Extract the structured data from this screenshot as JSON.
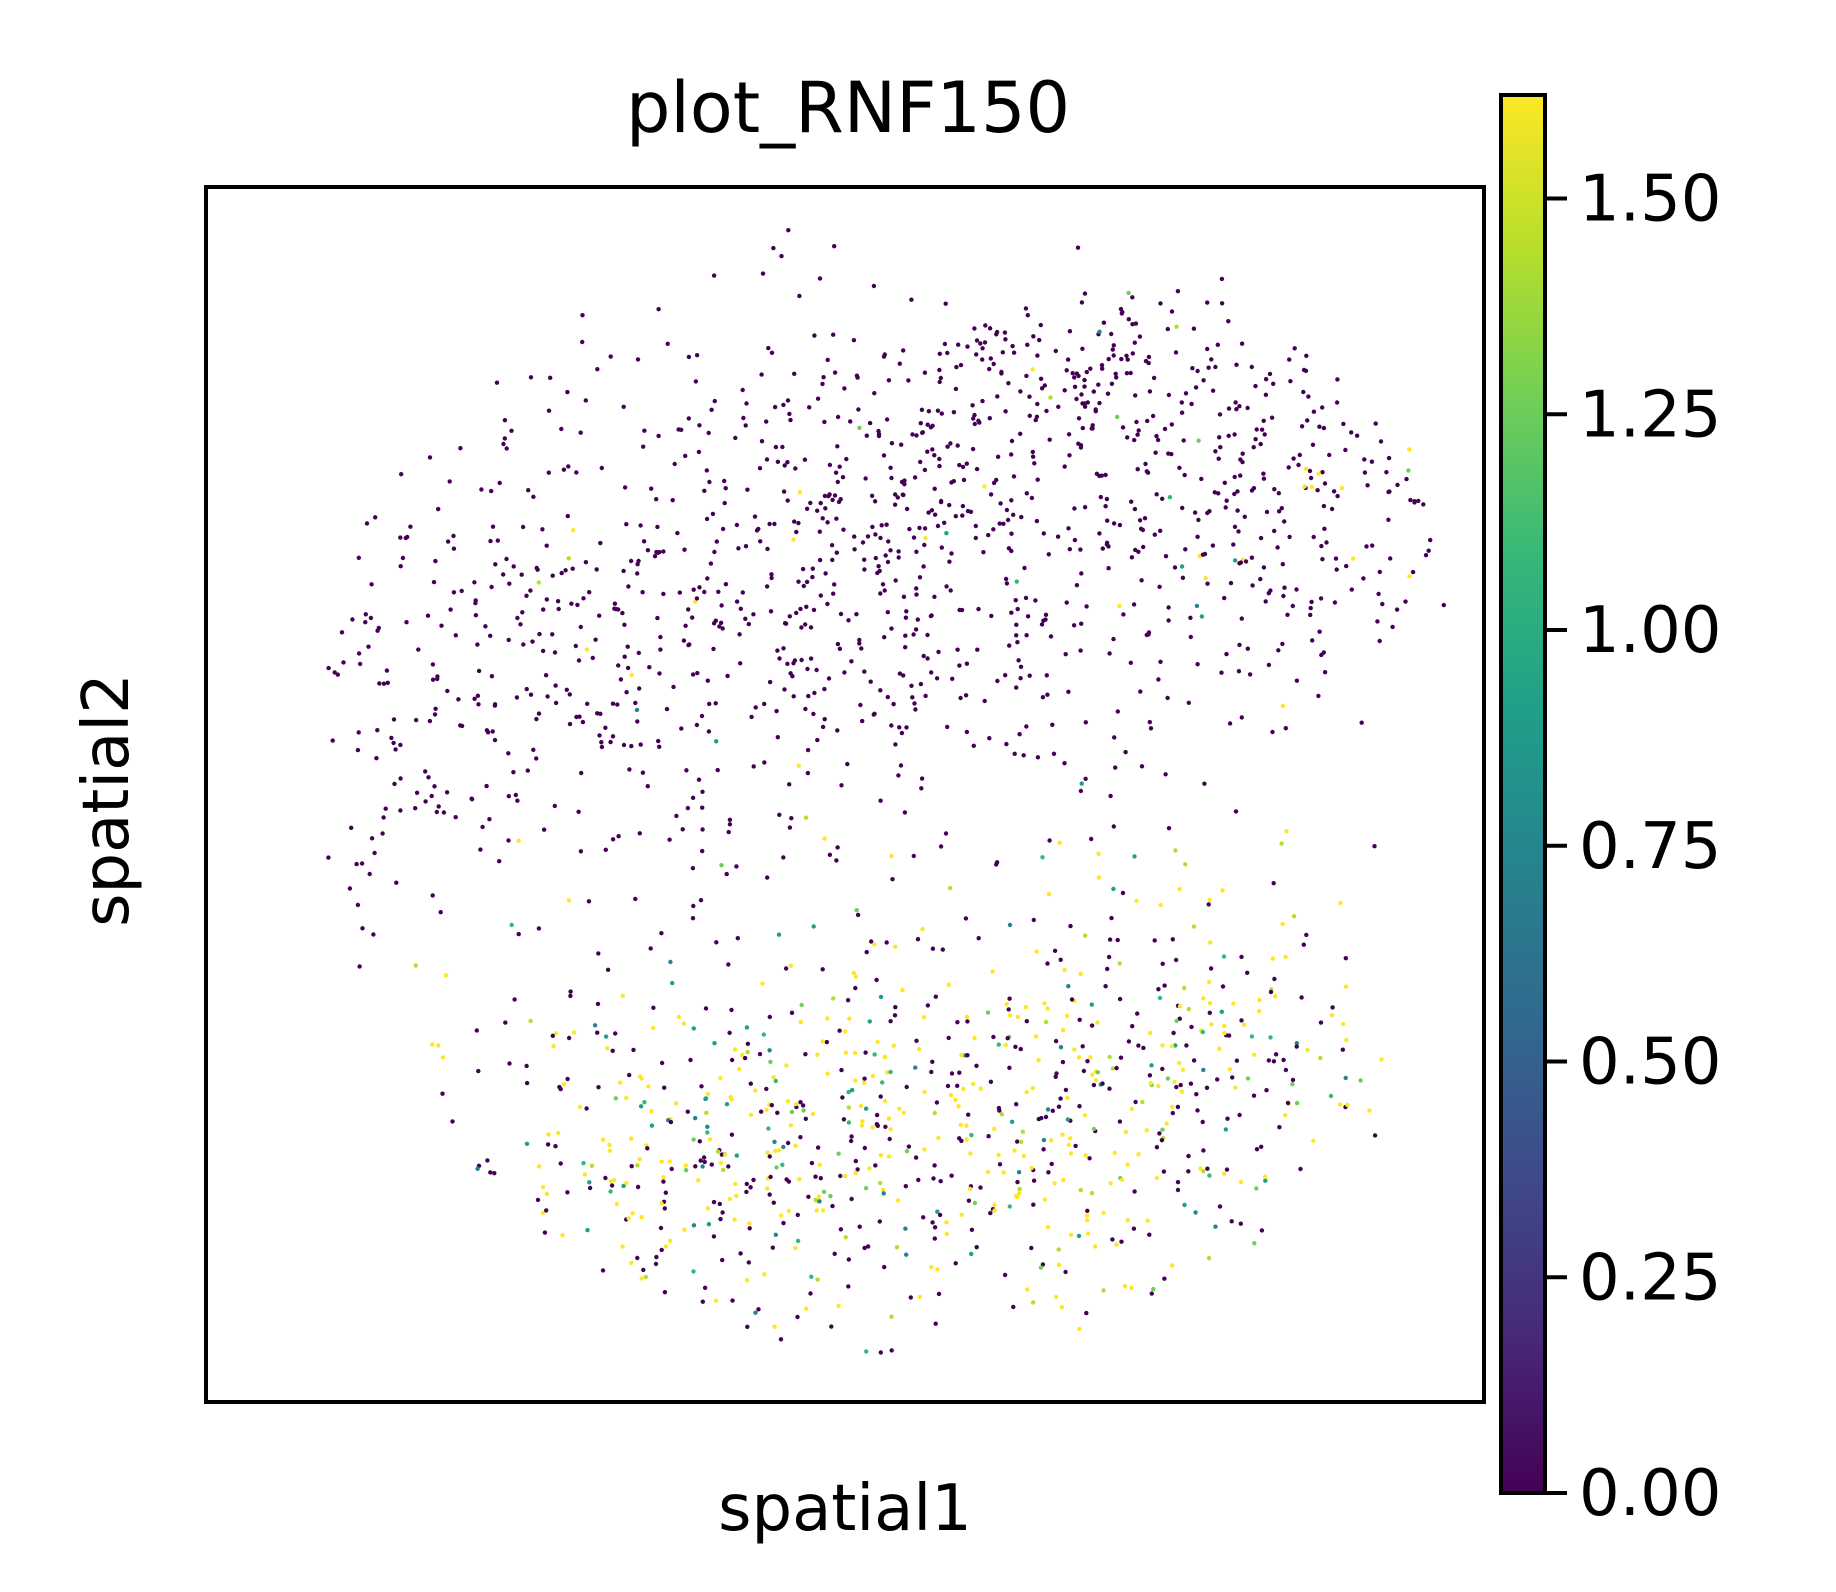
{
  "chart_data": {
    "type": "scatter",
    "title": "plot_RNF150",
    "xlabel": "spatial1",
    "ylabel": "spatial2",
    "x_ticks_shown": false,
    "y_ticks_shown": false,
    "grid": false,
    "colormap": "viridis",
    "colorbar": {
      "vmin": 0.0,
      "vmax": 1.62,
      "ticks": [
        0.0,
        0.25,
        0.5,
        0.75,
        1.0,
        1.25,
        1.5
      ],
      "tick_labels": [
        "0.00",
        "0.25",
        "0.50",
        "0.75",
        "1.00",
        "1.25",
        "1.50"
      ]
    },
    "colors": {
      "viridis": [
        "#440154",
        "#482878",
        "#3e4989",
        "#31688e",
        "#26828e",
        "#1f9e89",
        "#35b779",
        "#6ece58",
        "#b5de2b",
        "#fde725"
      ]
    },
    "xlim": [
      0,
      100
    ],
    "ylim": [
      0,
      100
    ],
    "point_cloud": {
      "count": 2200,
      "note_regions": "upper half mostly value 0; lower half mixed low and high expression"
    }
  }
}
